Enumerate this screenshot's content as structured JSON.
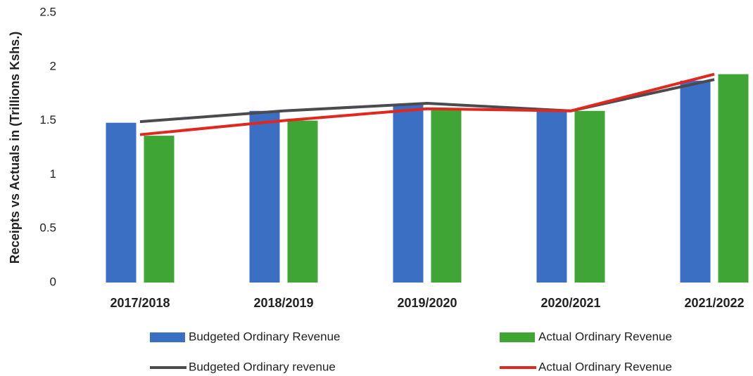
{
  "chart_data": {
    "type": "combo",
    "y_label": "Receipts vs Actuals in (Trillions Kshs.)",
    "categories": [
      "2017/2018",
      "2018/2019",
      "2019/2020",
      "2020/2021",
      "2021/2022"
    ],
    "series": [
      {
        "name": "Budgeted Ordinary Revenue",
        "type": "bar",
        "color": "#3b6fc4",
        "values": [
          1.48,
          1.59,
          1.65,
          1.59,
          1.87
        ]
      },
      {
        "name": "Actual Ordinary Revenue",
        "type": "bar",
        "color": "#3fa535",
        "values": [
          1.36,
          1.5,
          1.61,
          1.59,
          1.93
        ]
      },
      {
        "name": "Budgeted Ordinary revenue",
        "type": "line",
        "color": "#4a4a4f",
        "values": [
          1.49,
          1.59,
          1.66,
          1.59,
          1.88
        ]
      },
      {
        "name": "Actual Ordinary Revenue",
        "type": "line",
        "color": "#e0281e",
        "values": [
          1.37,
          1.5,
          1.61,
          1.59,
          1.93
        ]
      }
    ],
    "ylim": [
      0,
      2.5
    ],
    "yticks": [
      0,
      0.5,
      1,
      1.5,
      2,
      2.5
    ],
    "grid": false
  }
}
